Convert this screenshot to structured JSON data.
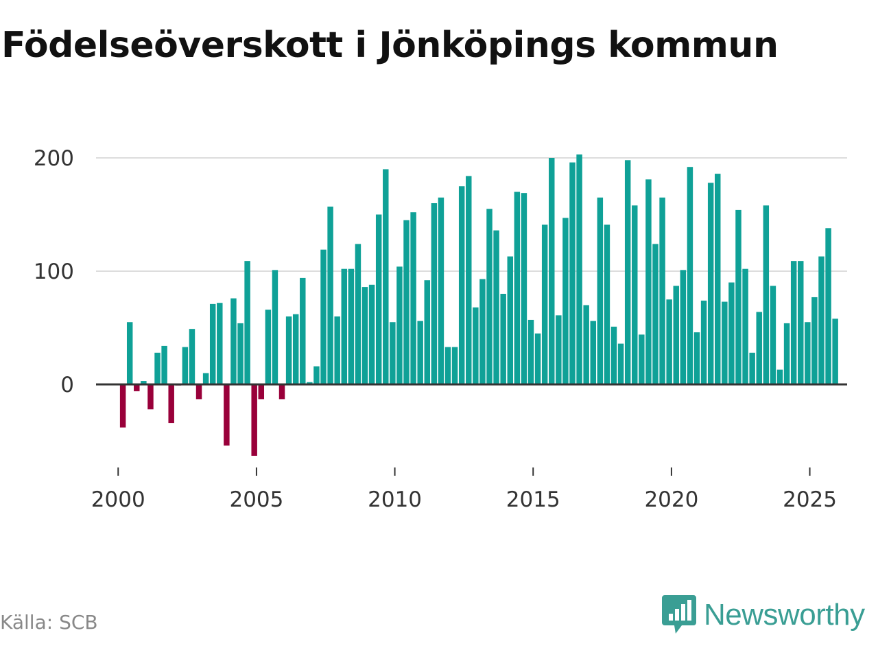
{
  "title": "Födelseöverskott i Jönköpings kommun",
  "source": "Källa: SCB",
  "brand": {
    "name": "Newsworthy",
    "icon": "newsworthy-logo-icon",
    "color": "#3a9e94"
  },
  "colors": {
    "positive": "#0fa197",
    "negative": "#99003a",
    "grid": "#dddddd",
    "zero": "#333333"
  },
  "chart_data": {
    "type": "bar",
    "title": "Födelseöverskott i Jönköpings kommun",
    "xlabel": "",
    "ylabel": "",
    "ylim": [
      -70,
      205
    ],
    "xlim": [
      1999.2,
      2026.35
    ],
    "yticks": [
      0,
      100,
      200
    ],
    "xticks": [
      2000,
      2005,
      2010,
      2015,
      2020,
      2025
    ],
    "y_tick_labels": [
      "0",
      "100",
      "200"
    ],
    "x_tick_labels": [
      "2000",
      "2005",
      "2010",
      "2015",
      "2020",
      "2025"
    ],
    "grid": true,
    "bar_width_years": 0.21,
    "x": [
      2000.17,
      2000.42,
      2000.67,
      2000.92,
      2001.17,
      2001.42,
      2001.67,
      2001.92,
      2002.17,
      2002.42,
      2002.67,
      2002.92,
      2003.17,
      2003.42,
      2003.67,
      2003.92,
      2004.17,
      2004.42,
      2004.67,
      2004.92,
      2005.17,
      2005.42,
      2005.67,
      2005.92,
      2006.17,
      2006.42,
      2006.67,
      2006.92,
      2007.17,
      2007.42,
      2007.67,
      2007.92,
      2008.17,
      2008.42,
      2008.67,
      2008.92,
      2009.17,
      2009.42,
      2009.67,
      2009.92,
      2010.17,
      2010.42,
      2010.67,
      2010.92,
      2011.17,
      2011.42,
      2011.67,
      2011.92,
      2012.17,
      2012.42,
      2012.67,
      2012.92,
      2013.17,
      2013.42,
      2013.67,
      2013.92,
      2014.17,
      2014.42,
      2014.67,
      2014.92,
      2015.17,
      2015.42,
      2015.67,
      2015.92,
      2016.17,
      2016.42,
      2016.67,
      2016.92,
      2017.17,
      2017.42,
      2017.67,
      2017.92,
      2018.17,
      2018.42,
      2018.67,
      2018.92,
      2019.17,
      2019.42,
      2019.67,
      2019.92,
      2020.17,
      2020.42,
      2020.67,
      2020.92,
      2021.17,
      2021.42,
      2021.67,
      2021.92,
      2022.17,
      2022.42,
      2022.67,
      2022.92,
      2023.17,
      2023.42,
      2023.67,
      2023.92,
      2024.17,
      2024.42,
      2024.67,
      2024.92,
      2025.17,
      2025.42,
      2025.67,
      2025.92
    ],
    "values": [
      -38,
      55,
      -6,
      3,
      -22,
      28,
      34,
      -34,
      -1,
      33,
      49,
      -13,
      10,
      71,
      72,
      -54,
      76,
      54,
      109,
      -63,
      -13,
      66,
      101,
      -13,
      60,
      62,
      94,
      2,
      16,
      119,
      157,
      60,
      102,
      102,
      124,
      86,
      88,
      150,
      190,
      55,
      104,
      145,
      152,
      56,
      92,
      160,
      165,
      33,
      33,
      175,
      184,
      68,
      93,
      155,
      136,
      80,
      113,
      170,
      169,
      57,
      45,
      141,
      200,
      61,
      147,
      196,
      203,
      70,
      56,
      165,
      141,
      51,
      36,
      198,
      158,
      44,
      181,
      124,
      165,
      75,
      87,
      101,
      192,
      46,
      74,
      178,
      186,
      73,
      90,
      154,
      102,
      28,
      64,
      158,
      87,
      13,
      54,
      109,
      109,
      55,
      77,
      113,
      138,
      58
    ]
  }
}
